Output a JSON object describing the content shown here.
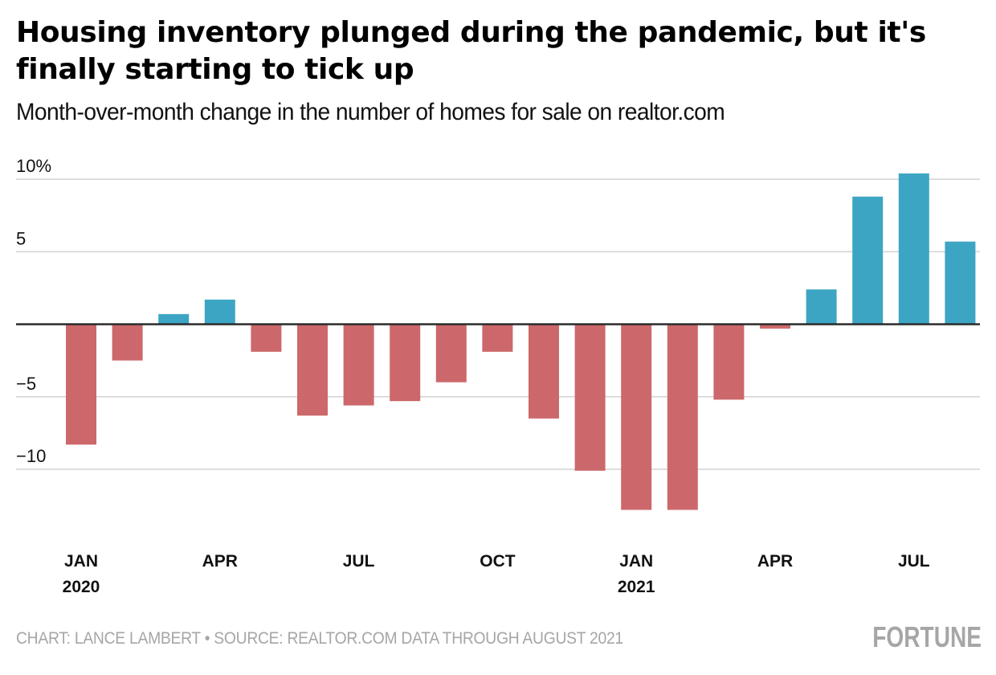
{
  "header": {
    "title": "Housing inventory plunged during the pandemic, but it's finally starting to tick up",
    "subtitle": "Month-over-month change in the number of homes for sale on realtor.com"
  },
  "footer": {
    "credit": "CHART: LANCE LAMBERT • SOURCE: REALTOR.COM DATA THROUGH AUGUST 2021",
    "brand": "FORTUNE"
  },
  "colors": {
    "positive": "#3da5c4",
    "negative": "#cc686b",
    "gridline": "#d3d3d3",
    "baseline": "#2b2b2b",
    "footer_text": "#a6a6a6"
  },
  "chart_data": {
    "type": "bar",
    "title": "Housing inventory plunged during the pandemic, but it's finally starting to tick up",
    "subtitle": "Month-over-month change in the number of homes for sale on realtor.com",
    "xlabel": "",
    "ylabel": "",
    "unit": "%",
    "categories": [
      "2020-01",
      "2020-02",
      "2020-03",
      "2020-04",
      "2020-05",
      "2020-06",
      "2020-07",
      "2020-08",
      "2020-09",
      "2020-10",
      "2020-11",
      "2020-12",
      "2021-01",
      "2021-02",
      "2021-03",
      "2021-04",
      "2021-05",
      "2021-06",
      "2021-07",
      "2021-08"
    ],
    "values": [
      -8.3,
      -2.5,
      0.7,
      1.7,
      -1.9,
      -6.3,
      -5.6,
      -5.3,
      -4.0,
      -1.9,
      -6.5,
      -10.1,
      -12.8,
      -12.8,
      -5.2,
      -0.3,
      2.4,
      8.8,
      10.4,
      5.7
    ],
    "ylim": [
      -15,
      11
    ],
    "yticks": [
      {
        "value": 10,
        "label": "10%"
      },
      {
        "value": 5,
        "label": "5"
      },
      {
        "value": -5,
        "label": "−5"
      },
      {
        "value": -10,
        "label": "−10"
      }
    ],
    "xticks": [
      {
        "index": 0,
        "label": "JAN",
        "sublabel": "2020"
      },
      {
        "index": 3,
        "label": "APR",
        "sublabel": ""
      },
      {
        "index": 6,
        "label": "JUL",
        "sublabel": ""
      },
      {
        "index": 9,
        "label": "OCT",
        "sublabel": ""
      },
      {
        "index": 12,
        "label": "JAN",
        "sublabel": "2021"
      },
      {
        "index": 15,
        "label": "APR",
        "sublabel": ""
      },
      {
        "index": 18,
        "label": "JUL",
        "sublabel": ""
      }
    ],
    "grid": true,
    "legend": "none"
  }
}
